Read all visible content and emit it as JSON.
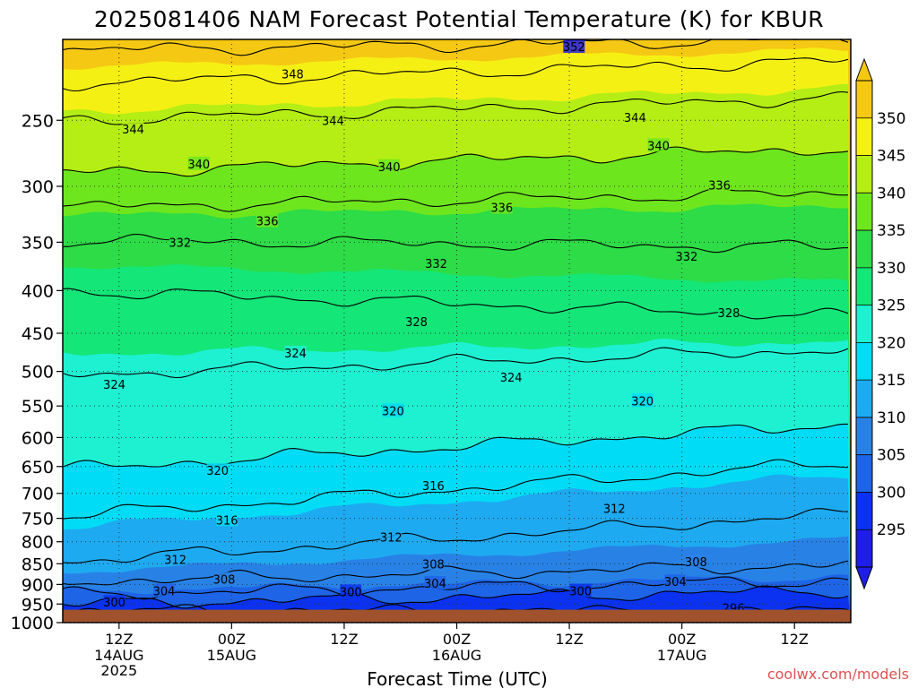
{
  "chart_data": {
    "type": "heatmap",
    "title": "2025081406 NAM Forecast Potential Temperature (K) for KBUR",
    "xlabel": "Forecast Time (UTC)",
    "ylabel": "",
    "y_axis": {
      "ticks": [
        "250",
        "300",
        "350",
        "400",
        "450",
        "500",
        "550",
        "600",
        "650",
        "700",
        "750",
        "800",
        "850",
        "900",
        "950",
        "1000"
      ],
      "range": [
        200,
        1000
      ],
      "scale": "log",
      "grid": "dotted"
    },
    "x_axis": {
      "ticks": [
        {
          "label": "12Z",
          "sub": [
            "14AUG",
            "2025"
          ],
          "hours": 6
        },
        {
          "label": "00Z",
          "sub": [
            "15AUG"
          ],
          "hours": 18
        },
        {
          "label": "12Z",
          "sub": [],
          "hours": 30
        },
        {
          "label": "00Z",
          "sub": [
            "16AUG"
          ],
          "hours": 42
        },
        {
          "label": "12Z",
          "sub": [],
          "hours": 54
        },
        {
          "label": "00Z",
          "sub": [
            "17AUG"
          ],
          "hours": 66
        },
        {
          "label": "12Z",
          "sub": [],
          "hours": 78
        }
      ],
      "range_hours": [
        0,
        84
      ],
      "grid": "dotted"
    },
    "colorbar": {
      "levels": [
        295,
        300,
        305,
        310,
        315,
        320,
        325,
        330,
        335,
        340,
        345,
        350
      ],
      "colors": [
        "#1e1ee6",
        "#0a32f0",
        "#1e64e6",
        "#2882e6",
        "#1eaaf0",
        "#00dcf5",
        "#1ef0d2",
        "#14e678",
        "#2ddc46",
        "#6ee61e",
        "#b4ee14",
        "#f5f014",
        "#f5c814"
      ],
      "extend": "both"
    },
    "contours": [
      {
        "value": 296,
        "p_start": 968,
        "p_end": 968
      },
      {
        "value": 300,
        "p_start": 950,
        "p_end": 915
      },
      {
        "value": 304,
        "p_start": 925,
        "p_end": 890
      },
      {
        "value": 308,
        "p_start": 893,
        "p_end": 852
      },
      {
        "value": 312,
        "p_start": 845,
        "p_end": 740
      },
      {
        "value": 316,
        "p_start": 745,
        "p_end": 642
      },
      {
        "value": 320,
        "p_start": 655,
        "p_end": 578
      },
      {
        "value": 324,
        "p_start": 505,
        "p_end": 470
      },
      {
        "value": 328,
        "p_start": 400,
        "p_end": 430
      },
      {
        "value": 332,
        "p_start": 348,
        "p_end": 355
      },
      {
        "value": 336,
        "p_start": 318,
        "p_end": 305
      },
      {
        "value": 340,
        "p_start": 289,
        "p_end": 270
      },
      {
        "value": 344,
        "p_start": 250,
        "p_end": 235
      },
      {
        "value": 348,
        "p_start": 226,
        "p_end": 212
      },
      {
        "value": 352,
        "p_start": 206,
        "p_end": 200
      }
    ],
    "contour_labels": [
      {
        "text": "352",
        "hours": 54.5,
        "p": 204
      },
      {
        "text": "348",
        "hours": 24.5,
        "p": 220
      },
      {
        "text": "344",
        "hours": 7.5,
        "p": 256
      },
      {
        "text": "344",
        "hours": 28.8,
        "p": 250
      },
      {
        "text": "344",
        "hours": 61,
        "p": 248
      },
      {
        "text": "340",
        "hours": 14.5,
        "p": 282
      },
      {
        "text": "340",
        "hours": 34.8,
        "p": 284
      },
      {
        "text": "340",
        "hours": 63.5,
        "p": 268
      },
      {
        "text": "336",
        "hours": 21.8,
        "p": 330
      },
      {
        "text": "336",
        "hours": 46.8,
        "p": 318
      },
      {
        "text": "336",
        "hours": 70,
        "p": 299
      },
      {
        "text": "332",
        "hours": 12.5,
        "p": 350
      },
      {
        "text": "332",
        "hours": 39.8,
        "p": 371
      },
      {
        "text": "332",
        "hours": 66.5,
        "p": 364
      },
      {
        "text": "328",
        "hours": 37.7,
        "p": 436
      },
      {
        "text": "328",
        "hours": 71,
        "p": 425
      },
      {
        "text": "324",
        "hours": 5.5,
        "p": 518
      },
      {
        "text": "324",
        "hours": 24.8,
        "p": 475
      },
      {
        "text": "324",
        "hours": 47.8,
        "p": 508
      },
      {
        "text": "320",
        "hours": 35.2,
        "p": 557
      },
      {
        "text": "320",
        "hours": 61.8,
        "p": 542
      },
      {
        "text": "320",
        "hours": 16.5,
        "p": 657
      },
      {
        "text": "316",
        "hours": 39.5,
        "p": 685
      },
      {
        "text": "316",
        "hours": 17.5,
        "p": 753
      },
      {
        "text": "312",
        "hours": 35,
        "p": 790
      },
      {
        "text": "312",
        "hours": 58.8,
        "p": 730
      },
      {
        "text": "312",
        "hours": 12,
        "p": 840
      },
      {
        "text": "308",
        "hours": 39.5,
        "p": 850
      },
      {
        "text": "308",
        "hours": 67.5,
        "p": 845
      },
      {
        "text": "308",
        "hours": 17.2,
        "p": 887
      },
      {
        "text": "304",
        "hours": 10.8,
        "p": 916
      },
      {
        "text": "304",
        "hours": 39.7,
        "p": 897
      },
      {
        "text": "304",
        "hours": 65.3,
        "p": 893
      },
      {
        "text": "300",
        "hours": 5.5,
        "p": 945
      },
      {
        "text": "300",
        "hours": 30.7,
        "p": 918
      },
      {
        "text": "300",
        "hours": 55.2,
        "p": 916
      },
      {
        "text": "296",
        "hours": 71.5,
        "p": 960
      }
    ],
    "surface_pressure": 965
  },
  "credit": "coolwx.com/models"
}
